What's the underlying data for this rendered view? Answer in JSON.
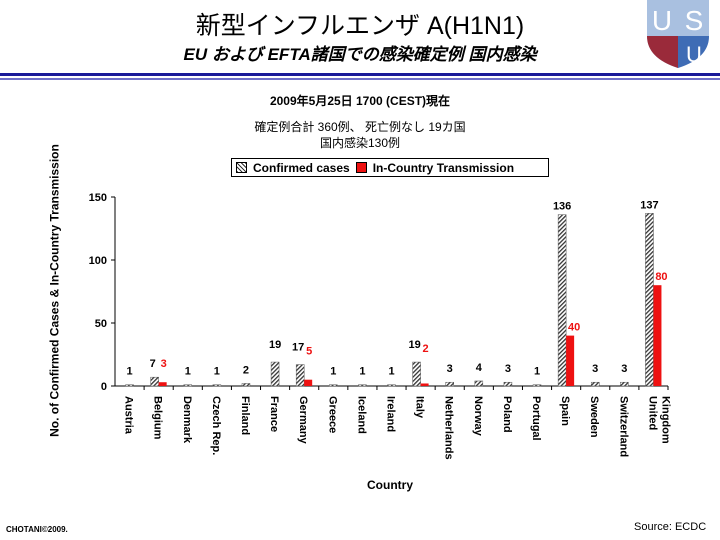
{
  "header": {
    "title": "新型インフルエンザ A(H1N1)",
    "subtitle": "EU および EFTA諸国での感染確定例  国内感染",
    "logo_text": "USU"
  },
  "info": {
    "date": "2009年5月25日  1700 (CEST)現在",
    "summary": "確定例合計 360例、 死亡例なし 19カ国",
    "domestic": "国内感染130例"
  },
  "footer": {
    "copyright": "CHOTANI©2009.",
    "source": "Source: ECDC"
  },
  "colors": {
    "confirmed": "#9a9a9a",
    "transmission": "#ee1111",
    "rule": "#1a1a99"
  },
  "chart_data": {
    "type": "bar",
    "xlabel": "Country",
    "ylabel": "No. of Confirmed Cases & In-Country Transmission",
    "ylim": [
      0,
      150
    ],
    "yticks": [
      0,
      50,
      100,
      150
    ],
    "legend_position": "top",
    "categories": [
      "Austria",
      "Belgium",
      "Denmark",
      "Czech Rep.",
      "Finland",
      "France",
      "Germany",
      "Greece",
      "Iceland",
      "Ireland",
      "Italy",
      "Netherlands",
      "Norway",
      "Poland",
      "Portugal",
      "Spain",
      "Sweden",
      "Switzerland",
      "United Kingdom"
    ],
    "series": [
      {
        "name": "Confirmed cases",
        "values": [
          1,
          7,
          1,
          1,
          2,
          19,
          17,
          1,
          1,
          1,
          19,
          3,
          4,
          3,
          1,
          136,
          3,
          3,
          137
        ]
      },
      {
        "name": "In-Country Transmission",
        "values": [
          null,
          3,
          null,
          null,
          null,
          null,
          5,
          null,
          null,
          null,
          2,
          null,
          null,
          null,
          null,
          40,
          null,
          null,
          80
        ]
      }
    ]
  }
}
